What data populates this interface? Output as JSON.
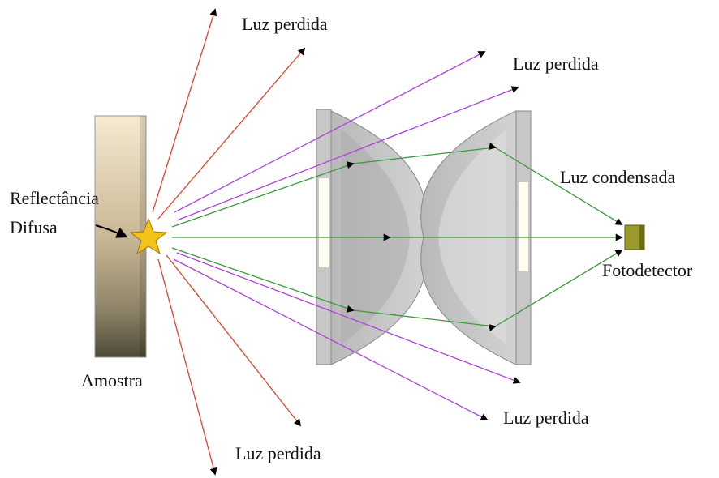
{
  "labels": {
    "lost_light": [
      "Luz perdida",
      "Luz perdida",
      "Luz perdida",
      "Luz perdida"
    ],
    "condensed_light": "Luz condensada",
    "detector": "Fotodetector",
    "reflectance": [
      "Reflectância",
      "Difusa"
    ],
    "sample": "Amostra"
  }
}
